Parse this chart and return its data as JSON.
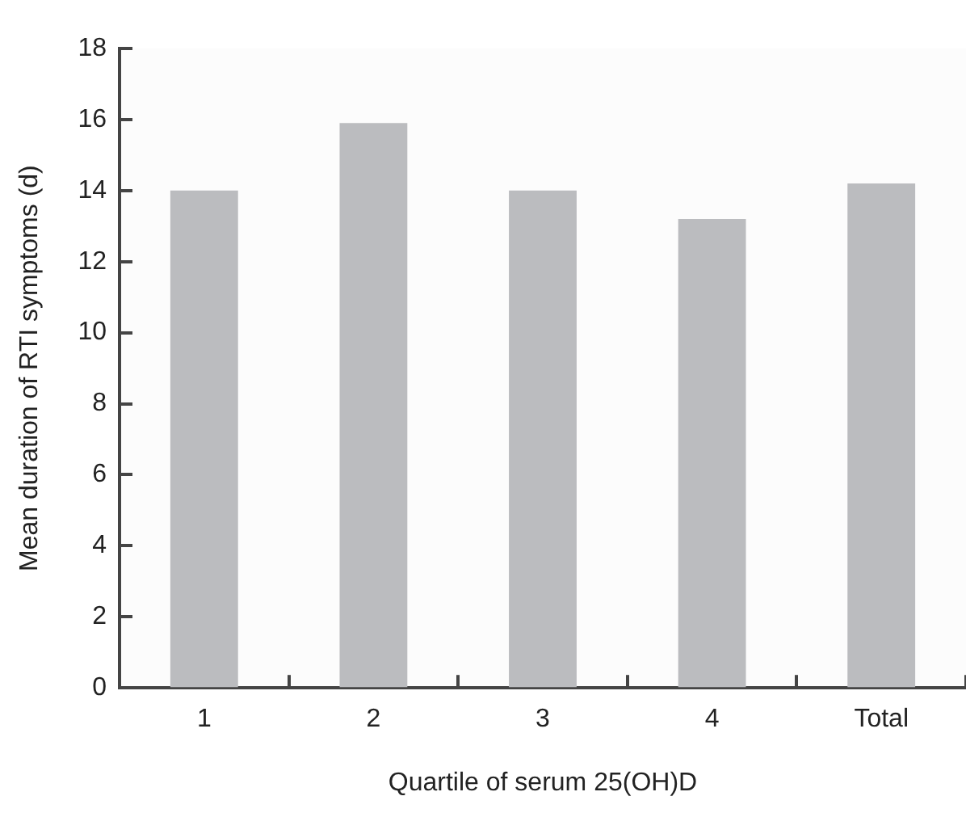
{
  "chart_data": {
    "type": "bar",
    "xlabel": "Quartile of serum 25(OH)D",
    "ylabel": "Mean duration of RTI symptoms (d)",
    "categories": [
      "1",
      "2",
      "3",
      "4",
      "Total"
    ],
    "values": [
      14,
      15.9,
      14,
      13.2,
      14.2
    ],
    "color": "#bbbcbf",
    "ylim": [
      0,
      18
    ],
    "yticks": [
      0,
      2,
      4,
      6,
      8,
      10,
      12,
      14,
      16,
      18
    ],
    "grid": false
  }
}
